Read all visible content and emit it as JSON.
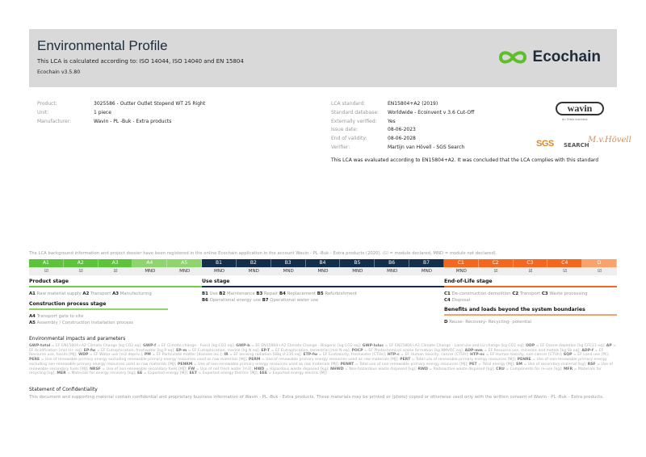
{
  "header": {
    "title": "Environmental Profile",
    "subtitle": "This LCA is calculated according to: ISO 14044, ISO 14040 and EN 15804",
    "version": "Ecochain v3.5.80",
    "logo_text": "Ecochain",
    "logo_color": "#5cbf2a"
  },
  "product_info": [
    {
      "label": "Product:",
      "value": "3025586 - Outter Outlet Stopend WT 25 Right"
    },
    {
      "label": "Unit:",
      "value": "1 piece"
    },
    {
      "label": "Manufacturer:",
      "value": "Wavin - PL -Buk - Extra products"
    }
  ],
  "lca_info": [
    {
      "label": "LCA standard:",
      "value": "EN15804+A2 (2019)"
    },
    {
      "label": "Standard database:",
      "value": "Worldwide - Ecoinvent v 3.6 Cut-Off"
    },
    {
      "label": "Externally verified:",
      "value": "Yes"
    },
    {
      "label": "Issue date:",
      "value": "08-06-2023"
    },
    {
      "label": "End of validity:",
      "value": "08-06-2028"
    },
    {
      "label": "Verifier:",
      "value": "Martijn van Hövell - SGS Search"
    }
  ],
  "evaluation": "This LCA was evaluated according to EN15804+A2. It was concluded that the LCA complies with this standard",
  "logos": {
    "wavin": "wavin",
    "wavin_sub": "An Orbia business",
    "sgs": "SGS",
    "search": "SEARCH",
    "signature": "M.v.Hövell"
  },
  "registration_note": "The LCA background information and project dossier have been registered in the online Ecochain application in the account Wavin - PL -Buk - Extra products (2020). (☑ = module declared, MND = module not declared).",
  "modules": [
    {
      "code": "A1",
      "status": "☑",
      "color": "#5cc43a"
    },
    {
      "code": "A2",
      "status": "☑",
      "color": "#5cc43a"
    },
    {
      "code": "A3",
      "status": "☑",
      "color": "#5cc43a"
    },
    {
      "code": "A4",
      "status": "MND",
      "color": "#8fd46c"
    },
    {
      "code": "A5",
      "status": "MND",
      "color": "#8fd46c"
    },
    {
      "code": "B1",
      "status": "MND",
      "color": "#132f4c"
    },
    {
      "code": "B2",
      "status": "MND",
      "color": "#132f4c"
    },
    {
      "code": "B3",
      "status": "MND",
      "color": "#132f4c"
    },
    {
      "code": "B4",
      "status": "MND",
      "color": "#132f4c"
    },
    {
      "code": "B5",
      "status": "MND",
      "color": "#132f4c"
    },
    {
      "code": "B6",
      "status": "MND",
      "color": "#132f4c"
    },
    {
      "code": "B7",
      "status": "MND",
      "color": "#132f4c"
    },
    {
      "code": "C1",
      "status": "MND",
      "color": "#f5661e"
    },
    {
      "code": "C2",
      "status": "☑",
      "color": "#f5661e"
    },
    {
      "code": "C3",
      "status": "☑",
      "color": "#f5661e"
    },
    {
      "code": "C4",
      "status": "☑",
      "color": "#f5661e"
    },
    {
      "code": "D",
      "status": "☑",
      "color": "#f9a36a"
    }
  ],
  "stages": {
    "product": {
      "title": "Product stage",
      "items": [
        [
          "A1",
          "Raw material supply"
        ],
        [
          "A2",
          "Transport"
        ],
        [
          "A3",
          "Manufacturing"
        ]
      ]
    },
    "construction": {
      "title": "Construction process stage",
      "items": [
        [
          "A4",
          "Transport gate to site"
        ],
        [
          "A5",
          "Assembly / Construction installation process"
        ]
      ]
    },
    "use": {
      "title": "Use stage",
      "items": [
        [
          "B1",
          "Use"
        ],
        [
          "B2",
          "Maintenance"
        ],
        [
          "B3",
          "Repair"
        ],
        [
          "B4",
          "Replacement"
        ],
        [
          "B5",
          "Refurbishment"
        ],
        [
          "B6",
          "Operational energy use"
        ],
        [
          "B7",
          "Operational water use"
        ]
      ]
    },
    "eol": {
      "title": "End-of-Life stage",
      "items": [
        [
          "C1",
          "De-construction demolition"
        ],
        [
          "C2",
          "Transport"
        ],
        [
          "C3",
          "Waste processing"
        ],
        [
          "C4",
          "Disposal"
        ]
      ]
    },
    "beyond": {
      "title": "Benefits and loads beyond the system boundaries",
      "items": [
        [
          "D",
          "Reuse- Recovery- Recycling- potential"
        ]
      ]
    }
  },
  "impacts": {
    "title": "Environmental impacts and parameters",
    "items": [
      [
        "GWP-total",
        "EF EN15804+A2 Climate Change [kg CO2 eq]"
      ],
      [
        "GWP-f",
        "EF Climate change - Fossil [kg CO2 eq]"
      ],
      [
        "GWP-b",
        "EF EN15804+A2 Climate Change - Biogenic [kg CO2 eq]"
      ],
      [
        "GWP-luluc",
        "EF EN15804+A2 Climate Change - Land use and LU change [kg CO2 eq]"
      ],
      [
        "ODP",
        "EF Ozone depletion [kg CFC11 eq]"
      ],
      [
        "AP",
        "EF Acidification [mol H+ eq]"
      ],
      [
        "EP-fw",
        "EF Eutrophication, freshwater [kg P eq]"
      ],
      [
        "EP-m",
        "EF Eutrophication, marine [kg N eq]"
      ],
      [
        "EP-T",
        "EF Eutrophication, terrestrial [mol N eq]"
      ],
      [
        "POCP",
        "EF Photochemical ozone formation [kg NMVOC eq]"
      ],
      [
        "ADP-mm",
        "EF Resource use, minerals and metals [kg Sb eq]"
      ],
      [
        "ADP-f",
        "EF Resource use, fossils [MJ]"
      ],
      [
        "WDP",
        "EF Water use [m3 depriv.]"
      ],
      [
        "PM",
        "EF Particulate matter [disease inc.]"
      ],
      [
        "IR",
        "EF Ionising radiation [kBq U-235 eq]"
      ],
      [
        "ETP-fw",
        "EF Ecotoxicity, freshwater [CTUe]"
      ],
      [
        "HTP-c",
        "EF Human toxicity, cancer [CTUh]"
      ],
      [
        "HTP-nc",
        "EF Human toxicity, non-cancer [CTUh]"
      ],
      [
        "SQP",
        "EF Land use [Pt]"
      ],
      [
        "PERE",
        "Use of renewable primary energy excluding renewable primary energy resources used as raw materials [MJ]"
      ],
      [
        "PERM",
        "Use of renewable primary energy resources used as raw materials [MJ]"
      ],
      [
        "PERT",
        "Total use of renewable primary energy resources [MJ]"
      ],
      [
        "PENRE",
        "Use of non-renewable primary energy excluding non-renewable primary energy resources used as raw materials [MJ]"
      ],
      [
        "PENRM",
        "Use of non-renewable primary energy resources used as raw materials [MJ]"
      ],
      [
        "PENRT",
        "Total use of non-renewable primary energy resources [MJ]"
      ],
      [
        "PET",
        "Total energy [MJ]"
      ],
      [
        "SM",
        "Use of secondary material [kg]"
      ],
      [
        "RSF",
        "Use of renewable secondary fuels [MJ]"
      ],
      [
        "NRSF",
        "Use of non-renewable secondary fuels [MJ]"
      ],
      [
        "FW",
        "Use of net fresh water [m3]"
      ],
      [
        "HWD",
        "Hazardous waste disposed [kg]"
      ],
      [
        "NHWD",
        "Non-hazardous waste disposed [kg]"
      ],
      [
        "RWD",
        "Radioactive waste disposed [kg]"
      ],
      [
        "CRU",
        "Components for re-use [kg]"
      ],
      [
        "MFR",
        "Materials for recycling [kg]"
      ],
      [
        "MER",
        "Materials for energy recovery [kg]"
      ],
      [
        "EE",
        "Exported energy [MJ]"
      ],
      [
        "EET",
        "Exported energy thermic [MJ]"
      ],
      [
        "EEE",
        "Exported energy electric [MJ]"
      ]
    ]
  },
  "confidentiality": {
    "title": "Statement of Confidentiality",
    "text": "This document and supporting material contain confidential and proprietary business information of Wavin - PL -Buk - Extra products. These materials may be printed or (photo) copied or otherwise used only with the written consent of Wavin - PL -Buk - Extra products."
  }
}
